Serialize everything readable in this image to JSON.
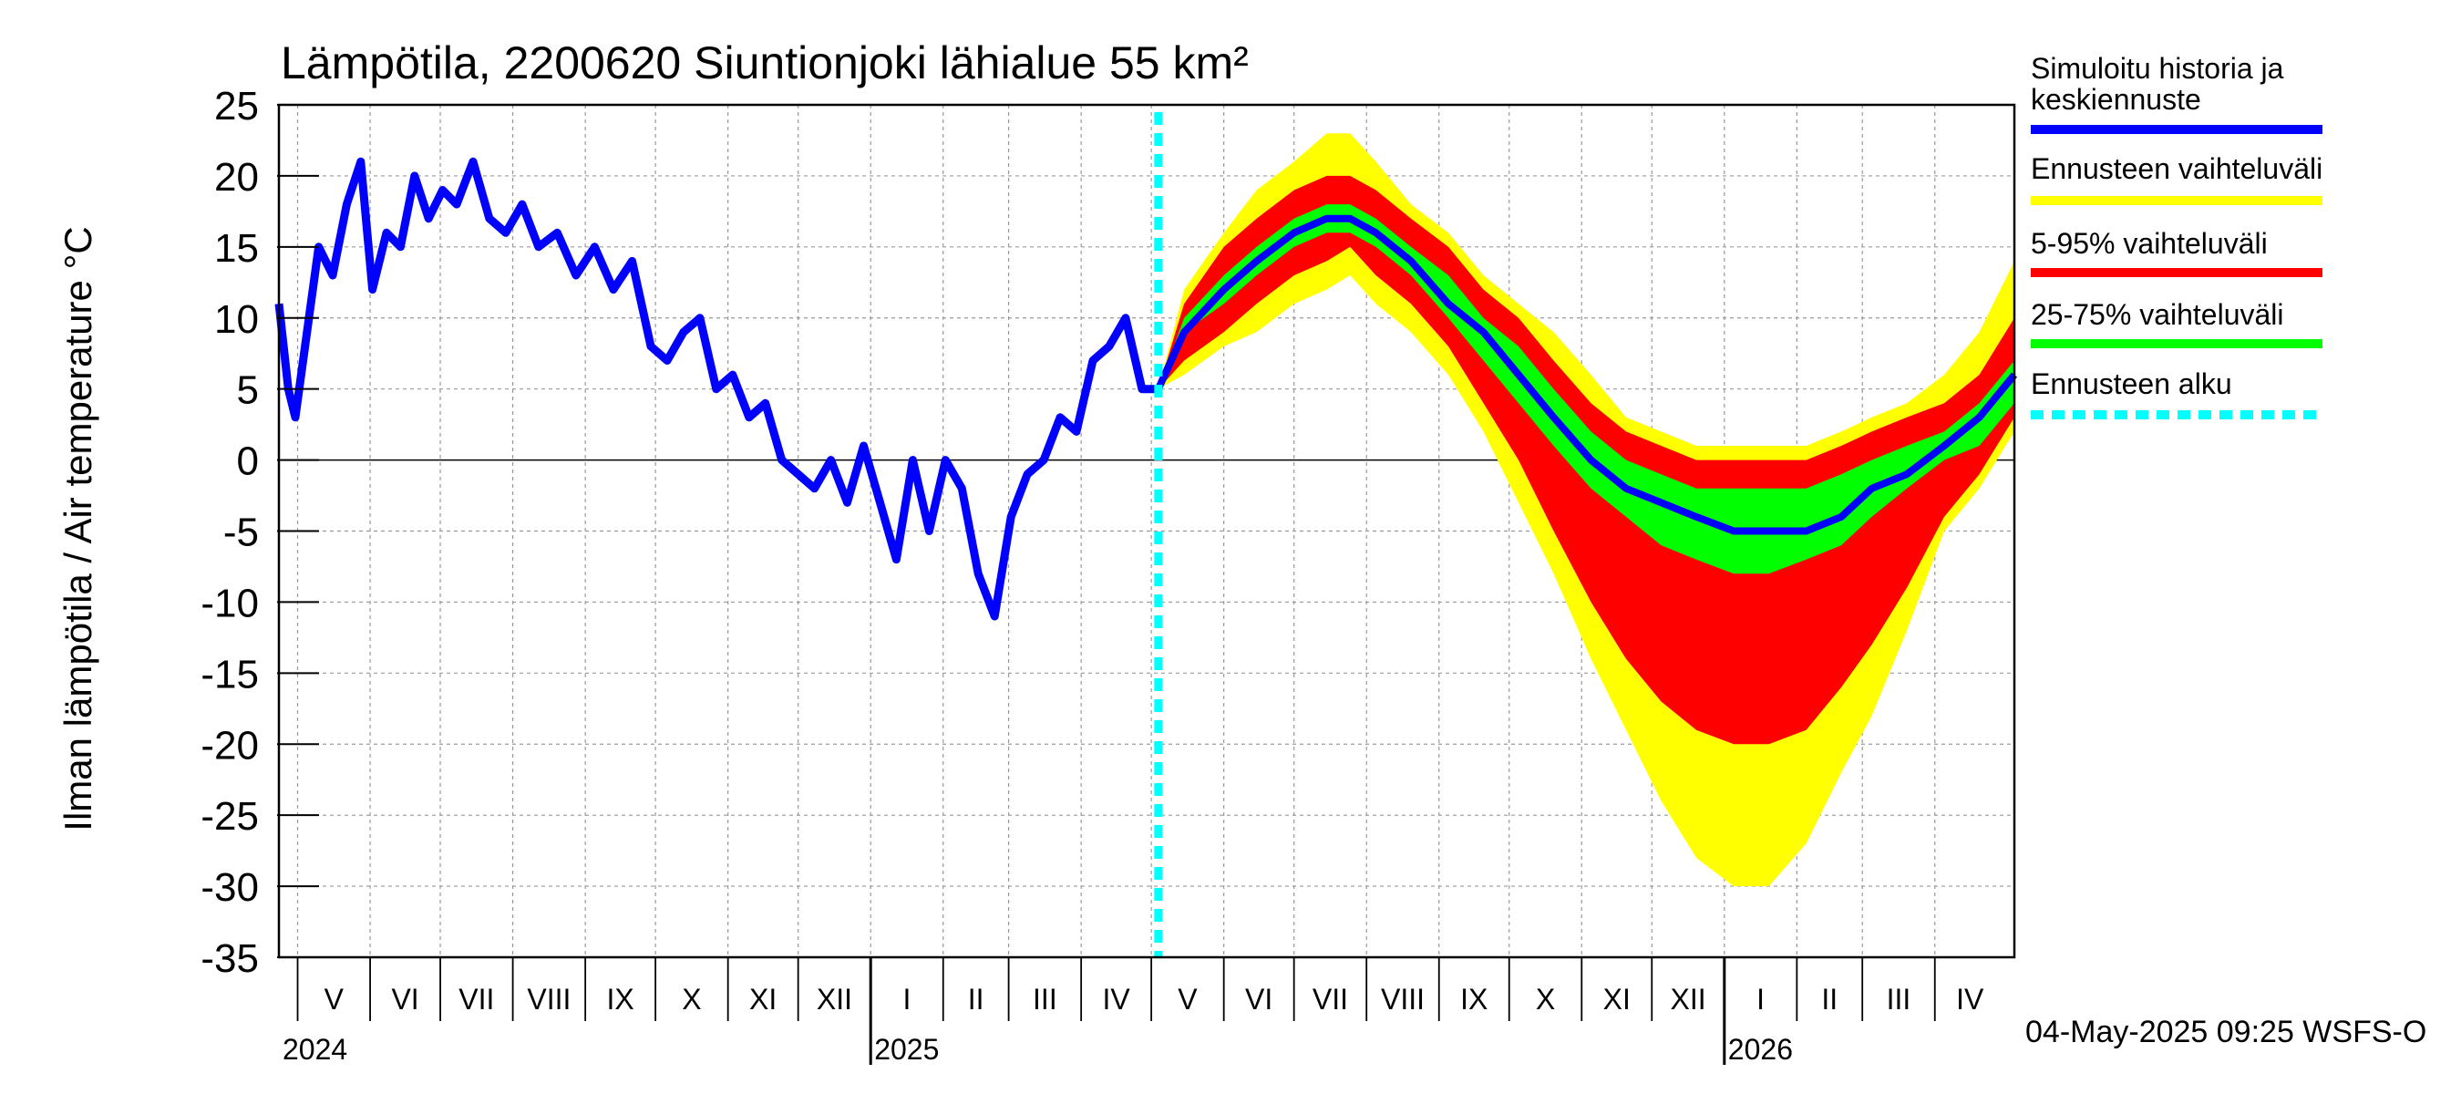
{
  "chart_data": {
    "type": "line",
    "title": "Lämpötila, 2200620 Siuntionjoki lähialue 55 km²",
    "ylabel": "Ilman lämpötila / Air temperature   °C",
    "xlabel": "",
    "ylim": [
      -35,
      25
    ],
    "yticks": [
      25,
      20,
      15,
      10,
      5,
      0,
      -5,
      -10,
      -15,
      -20,
      -25,
      -30,
      -35
    ],
    "xlim": [
      "2024-04-23",
      "2026-05-05"
    ],
    "grid": true,
    "legend_position": "right",
    "months": [
      {
        "label": "V",
        "start": "2024-05-01",
        "end": "2024-06-01"
      },
      {
        "label": "VI",
        "start": "2024-06-01",
        "end": "2024-07-01"
      },
      {
        "label": "VII",
        "start": "2024-07-01",
        "end": "2024-08-01"
      },
      {
        "label": "VIII",
        "start": "2024-08-01",
        "end": "2024-09-01"
      },
      {
        "label": "IX",
        "start": "2024-09-01",
        "end": "2024-10-01"
      },
      {
        "label": "X",
        "start": "2024-10-01",
        "end": "2024-11-01"
      },
      {
        "label": "XI",
        "start": "2024-11-01",
        "end": "2024-12-01"
      },
      {
        "label": "XII",
        "start": "2024-12-01",
        "end": "2025-01-01"
      },
      {
        "label": "I",
        "start": "2025-01-01",
        "end": "2025-02-01"
      },
      {
        "label": "II",
        "start": "2025-02-01",
        "end": "2025-03-01"
      },
      {
        "label": "III",
        "start": "2025-03-01",
        "end": "2025-04-01"
      },
      {
        "label": "IV",
        "start": "2025-04-01",
        "end": "2025-05-01"
      },
      {
        "label": "V",
        "start": "2025-05-01",
        "end": "2025-06-01"
      },
      {
        "label": "VI",
        "start": "2025-06-01",
        "end": "2025-07-01"
      },
      {
        "label": "VII",
        "start": "2025-07-01",
        "end": "2025-08-01"
      },
      {
        "label": "VIII",
        "start": "2025-08-01",
        "end": "2025-09-01"
      },
      {
        "label": "IX",
        "start": "2025-09-01",
        "end": "2025-10-01"
      },
      {
        "label": "X",
        "start": "2025-10-01",
        "end": "2025-11-01"
      },
      {
        "label": "XI",
        "start": "2025-11-01",
        "end": "2025-12-01"
      },
      {
        "label": "XII",
        "start": "2025-12-01",
        "end": "2026-01-01"
      },
      {
        "label": "I",
        "start": "2026-01-01",
        "end": "2026-02-01"
      },
      {
        "label": "II",
        "start": "2026-02-01",
        "end": "2026-03-01"
      },
      {
        "label": "III",
        "start": "2026-03-01",
        "end": "2026-04-01"
      },
      {
        "label": "IV",
        "start": "2026-04-01",
        "end": "2026-05-01"
      }
    ],
    "years": [
      {
        "label": "2024",
        "date": "2024-04-23"
      },
      {
        "label": "2025",
        "date": "2025-01-01"
      },
      {
        "label": "2026",
        "date": "2026-01-01"
      }
    ],
    "forecast_start": "2025-05-04",
    "legend": [
      {
        "label": "Simuloitu historia ja keskiennuste",
        "color": "#0000ff",
        "style": "solid"
      },
      {
        "label": "Ennusteen vaihteluväli",
        "color": "#ffff00",
        "style": "solid"
      },
      {
        "label": "5-95% vaihteluväli",
        "color": "#ff0000",
        "style": "solid"
      },
      {
        "label": "25-75% vaihteluväli",
        "color": "#00ff00",
        "style": "solid"
      },
      {
        "label": "Ennusteen alku",
        "color": "#00ffff",
        "style": "dashed"
      }
    ],
    "history": {
      "name": "Simuloitu historia ja keskiennuste",
      "x": [
        "2024-04-23",
        "2024-04-27",
        "2024-04-30",
        "2024-05-05",
        "2024-05-10",
        "2024-05-16",
        "2024-05-22",
        "2024-05-28",
        "2024-06-02",
        "2024-06-08",
        "2024-06-14",
        "2024-06-20",
        "2024-06-26",
        "2024-07-02",
        "2024-07-08",
        "2024-07-15",
        "2024-07-22",
        "2024-07-29",
        "2024-08-05",
        "2024-08-12",
        "2024-08-20",
        "2024-08-28",
        "2024-09-05",
        "2024-09-13",
        "2024-09-21",
        "2024-09-29",
        "2024-10-06",
        "2024-10-13",
        "2024-10-20",
        "2024-10-27",
        "2024-11-03",
        "2024-11-10",
        "2024-11-17",
        "2024-11-24",
        "2024-12-01",
        "2024-12-08",
        "2024-12-15",
        "2024-12-22",
        "2024-12-29",
        "2025-01-05",
        "2025-01-12",
        "2025-01-19",
        "2025-01-26",
        "2025-02-02",
        "2025-02-09",
        "2025-02-16",
        "2025-02-23",
        "2025-03-02",
        "2025-03-09",
        "2025-03-16",
        "2025-03-23",
        "2025-03-30",
        "2025-04-06",
        "2025-04-13",
        "2025-04-20",
        "2025-04-27",
        "2025-05-04"
      ],
      "y": [
        11,
        5,
        3,
        9,
        15,
        13,
        18,
        21,
        12,
        16,
        15,
        20,
        17,
        19,
        18,
        21,
        17,
        16,
        18,
        15,
        16,
        13,
        15,
        12,
        14,
        8,
        7,
        9,
        10,
        5,
        6,
        3,
        4,
        0,
        -1,
        -2,
        0,
        -3,
        1,
        -3,
        -7,
        0,
        -5,
        0,
        -2,
        -8,
        -11,
        -4,
        -1,
        0,
        3,
        2,
        7,
        8,
        10,
        5,
        5
      ]
    },
    "forecast": {
      "x": [
        "2025-05-04",
        "2025-05-15",
        "2025-06-01",
        "2025-06-15",
        "2025-07-01",
        "2025-07-15",
        "2025-07-25",
        "2025-08-05",
        "2025-08-20",
        "2025-09-05",
        "2025-09-20",
        "2025-10-05",
        "2025-10-20",
        "2025-11-05",
        "2025-11-20",
        "2025-12-05",
        "2025-12-20",
        "2026-01-05",
        "2026-01-20",
        "2026-02-05",
        "2026-02-20",
        "2026-03-05",
        "2026-03-20",
        "2026-04-05",
        "2026-04-20",
        "2026-05-05"
      ],
      "min": [
        5,
        6,
        8,
        9,
        11,
        12,
        13,
        11,
        9,
        6,
        2,
        -3,
        -8,
        -14,
        -19,
        -24,
        -28,
        -30,
        -30,
        -27,
        -22,
        -18,
        -12,
        -5,
        -2,
        2
      ],
      "p5": [
        5,
        7,
        9,
        11,
        13,
        14,
        15,
        13,
        11,
        8,
        4,
        0,
        -5,
        -10,
        -14,
        -17,
        -19,
        -20,
        -20,
        -19,
        -16,
        -13,
        -9,
        -4,
        -1,
        3
      ],
      "p25": [
        5,
        9,
        11,
        13,
        15,
        16,
        16,
        15,
        13,
        10,
        7,
        4,
        1,
        -2,
        -4,
        -6,
        -7,
        -8,
        -8,
        -7,
        -6,
        -4,
        -2,
        0,
        1,
        4
      ],
      "median": [
        5,
        9,
        12,
        14,
        16,
        17,
        17,
        16,
        14,
        11,
        9,
        6,
        3,
        0,
        -2,
        -3,
        -4,
        -5,
        -5,
        -5,
        -4,
        -2,
        -1,
        1,
        3,
        6
      ],
      "p75": [
        5,
        10,
        13,
        15,
        17,
        18,
        18,
        17,
        15,
        13,
        10,
        8,
        5,
        2,
        0,
        -1,
        -2,
        -2,
        -2,
        -2,
        -1,
        0,
        1,
        2,
        4,
        7
      ],
      "p95": [
        5,
        11,
        15,
        17,
        19,
        20,
        20,
        19,
        17,
        15,
        12,
        10,
        7,
        4,
        2,
        1,
        0,
        0,
        0,
        0,
        1,
        2,
        3,
        4,
        6,
        10
      ],
      "max": [
        5,
        12,
        16,
        19,
        21,
        23,
        23,
        21,
        18,
        16,
        13,
        11,
        9,
        6,
        3,
        2,
        1,
        1,
        1,
        1,
        2,
        3,
        4,
        6,
        9,
        14
      ]
    }
  },
  "footer": {
    "timestamp": "04-May-2025 09:25 WSFS-O"
  }
}
